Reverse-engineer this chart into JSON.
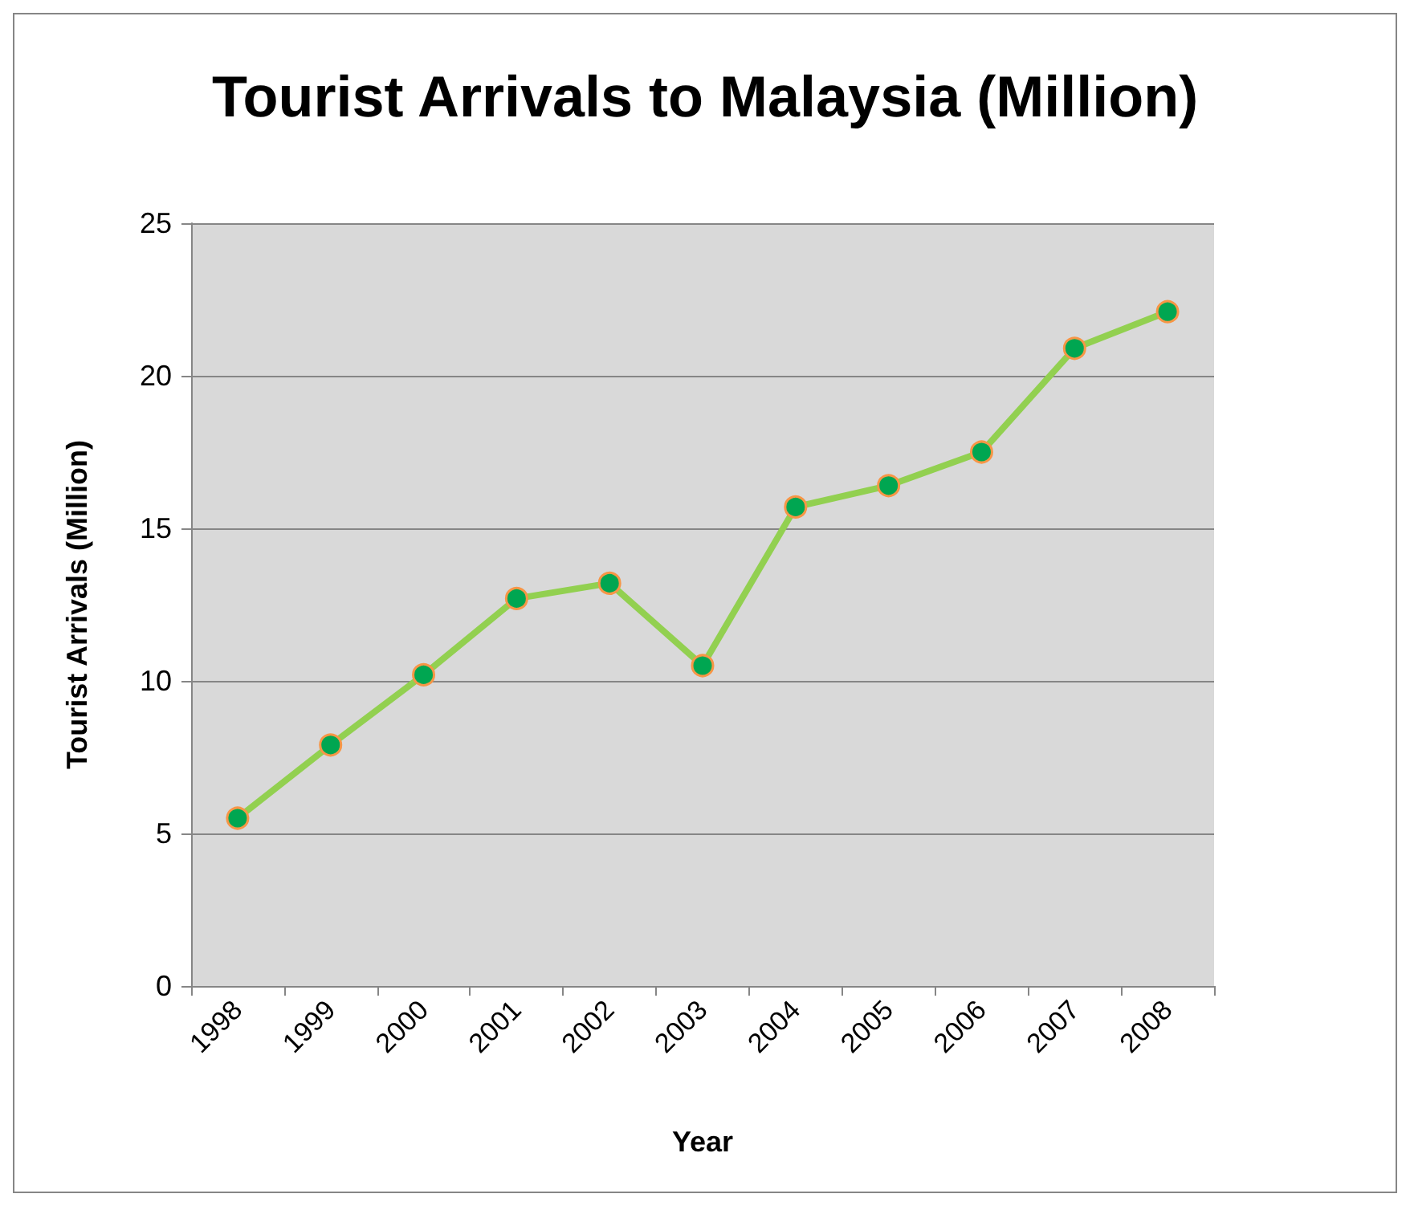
{
  "chart_data": {
    "type": "line",
    "title": "Tourist Arrivals to Malaysia (Million)",
    "xlabel": "Year",
    "ylabel": "Tourist Arrivals (Million)",
    "categories": [
      "1998",
      "1999",
      "2000",
      "2001",
      "2002",
      "2003",
      "2004",
      "2005",
      "2006",
      "2007",
      "2008"
    ],
    "series": [
      {
        "color": "#92d050",
        "values": [
          5.5,
          7.9,
          10.2,
          12.7,
          13.2,
          10.5,
          15.7,
          16.4,
          17.5,
          20.9,
          22.1
        ]
      }
    ],
    "ylim": [
      0,
      25
    ],
    "yticks": [
      0,
      5,
      10,
      15,
      20,
      25
    ],
    "grid": "y",
    "marker": "circle",
    "line_style": "solid"
  }
}
